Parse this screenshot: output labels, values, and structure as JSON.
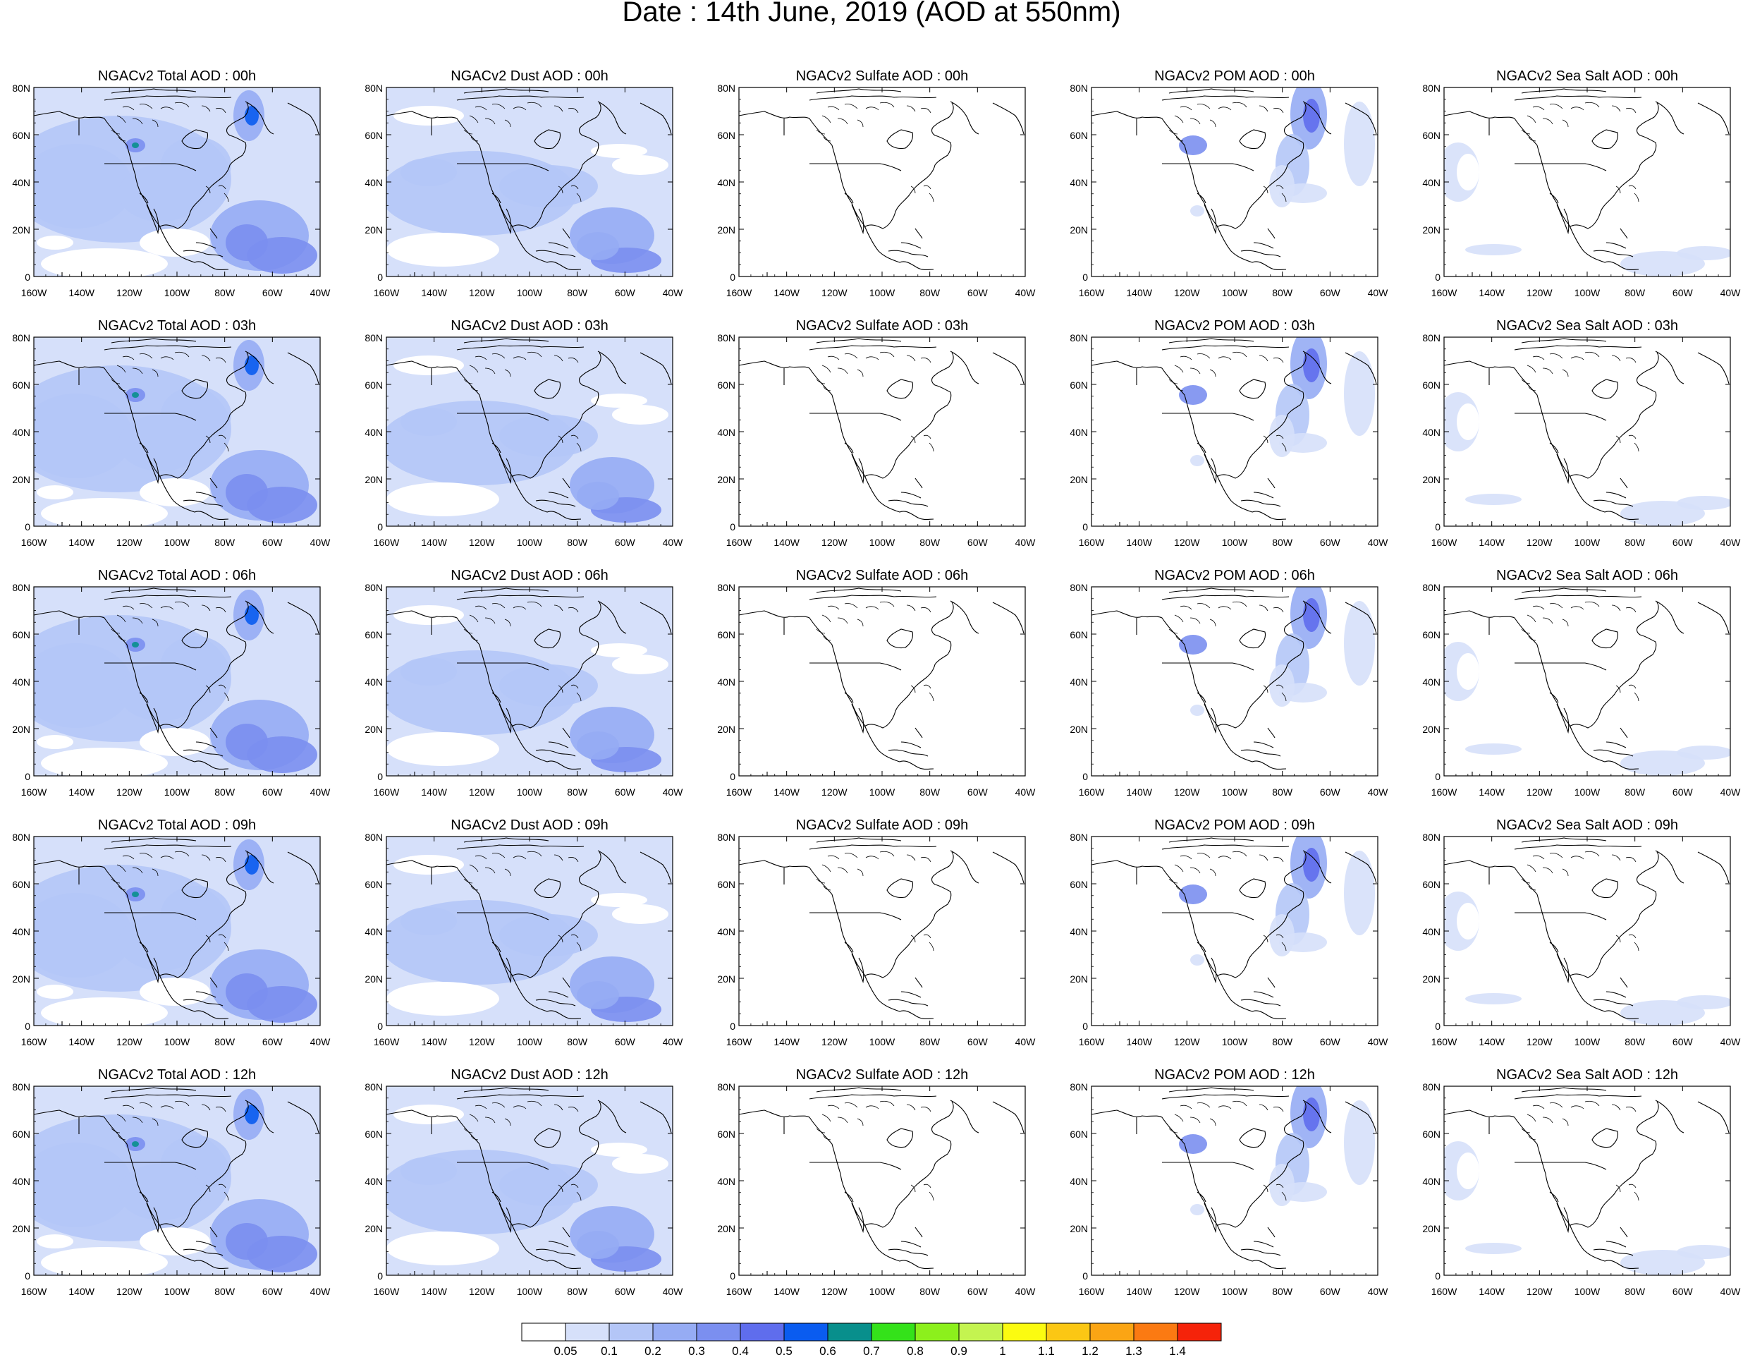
{
  "page_title": "Date : 14th June, 2019 (AOD at 550nm)",
  "x_ticks": [
    "160W",
    "140W",
    "120W",
    "100W",
    "80W",
    "60W",
    "40W"
  ],
  "y_ticks": [
    "80N",
    "60N",
    "40N",
    "20N",
    "0"
  ],
  "panels": [
    {
      "title": "NGACv2 Total AOD : 00h",
      "species": "total",
      "hour": "00h"
    },
    {
      "title": "NGACv2 Dust AOD : 00h",
      "species": "dust",
      "hour": "00h"
    },
    {
      "title": "NGACv2 Sulfate AOD : 00h",
      "species": "sulfate",
      "hour": "00h"
    },
    {
      "title": "NGACv2 POM AOD : 00h",
      "species": "pom",
      "hour": "00h"
    },
    {
      "title": "NGACv2 Sea Salt AOD : 00h",
      "species": "seasalt",
      "hour": "00h"
    },
    {
      "title": "NGACv2 Total AOD : 03h",
      "species": "total",
      "hour": "03h"
    },
    {
      "title": "NGACv2 Dust AOD : 03h",
      "species": "dust",
      "hour": "03h"
    },
    {
      "title": "NGACv2 Sulfate AOD : 03h",
      "species": "sulfate",
      "hour": "03h"
    },
    {
      "title": "NGACv2 POM AOD : 03h",
      "species": "pom",
      "hour": "03h"
    },
    {
      "title": "NGACv2 Sea Salt AOD : 03h",
      "species": "seasalt",
      "hour": "03h"
    },
    {
      "title": "NGACv2 Total AOD : 06h",
      "species": "total",
      "hour": "06h"
    },
    {
      "title": "NGACv2 Dust AOD : 06h",
      "species": "dust",
      "hour": "06h"
    },
    {
      "title": "NGACv2 Sulfate AOD : 06h",
      "species": "sulfate",
      "hour": "06h"
    },
    {
      "title": "NGACv2 POM AOD : 06h",
      "species": "pom",
      "hour": "06h"
    },
    {
      "title": "NGACv2 Sea Salt AOD : 06h",
      "species": "seasalt",
      "hour": "06h"
    },
    {
      "title": "NGACv2 Total AOD : 09h",
      "species": "total",
      "hour": "09h"
    },
    {
      "title": "NGACv2 Dust AOD : 09h",
      "species": "dust",
      "hour": "09h"
    },
    {
      "title": "NGACv2 Sulfate AOD : 09h",
      "species": "sulfate",
      "hour": "09h"
    },
    {
      "title": "NGACv2 POM AOD : 09h",
      "species": "pom",
      "hour": "09h"
    },
    {
      "title": "NGACv2 Sea Salt  AOD : 09h",
      "species": "seasalt",
      "hour": "09h"
    },
    {
      "title": "NGACv2 Total AOD  : 12h",
      "species": "total",
      "hour": "12h"
    },
    {
      "title": "NGACv2 Dust AOD : 12h",
      "species": "dust",
      "hour": "12h"
    },
    {
      "title": "NGACv2 Sulfate AOD : 12h",
      "species": "sulfate",
      "hour": "12h"
    },
    {
      "title": "NGACv2 POM  AOD : 12h",
      "species": "pom",
      "hour": "12h"
    },
    {
      "title": "NGACv2 Sea Salt  AOD : 12h",
      "species": "seasalt",
      "hour": "12h"
    }
  ],
  "colorbar": {
    "colors": [
      "#ffffff",
      "#d6e0fa",
      "#b4c6f7",
      "#96acf4",
      "#7b8ff0",
      "#5f6ded",
      "#0a5cf0",
      "#088f8c",
      "#34e21a",
      "#8cf01c",
      "#c4f450",
      "#fbfb10",
      "#fbc714",
      "#fba514",
      "#fb7a12",
      "#f5230a"
    ],
    "labels": [
      "0.05",
      "0.1",
      "0.2",
      "0.3",
      "0.4",
      "0.5",
      "0.6",
      "0.7",
      "0.8",
      "0.9",
      "1",
      "1.1",
      "1.2",
      "1.3",
      "1.4"
    ]
  }
}
